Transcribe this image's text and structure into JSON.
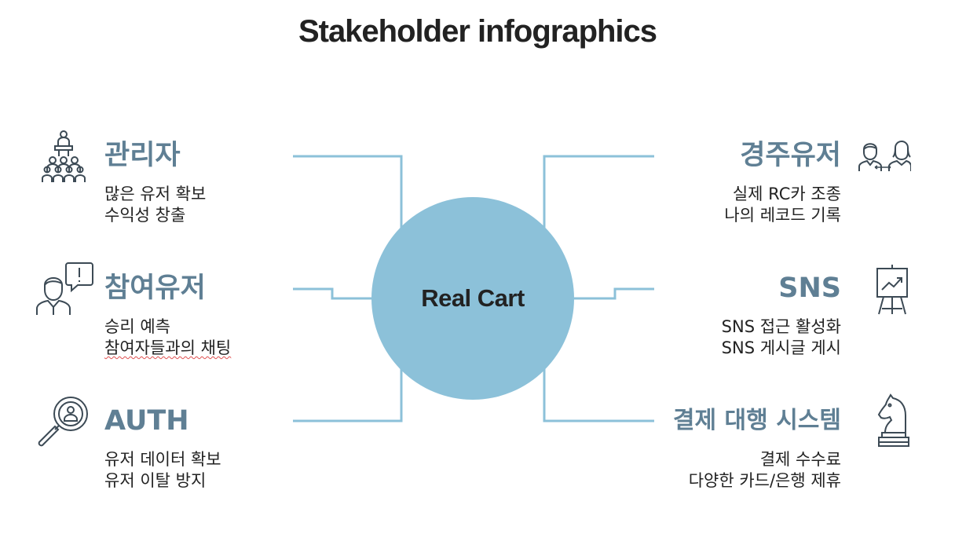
{
  "title": "Stakeholder infographics",
  "hub": {
    "label": "Real Cart"
  },
  "left": [
    {
      "title": "관리자",
      "lines": [
        "많은 유저 확보",
        "수익성 창출"
      ],
      "icon": "presenter-audience-icon"
    },
    {
      "title": "참여유저",
      "lines": [
        "승리 예측",
        "참여자들과의 채팅"
      ],
      "icon": "person-exclamation-icon"
    },
    {
      "title": "AUTH",
      "lines": [
        "유저 데이터 확보",
        "유저 이탈 방지"
      ],
      "icon": "magnifier-user-icon"
    }
  ],
  "right": [
    {
      "title": "경주유저",
      "lines": [
        "실제 RC카 조종",
        "나의 레코드 기록"
      ],
      "icon": "two-people-exchange-icon"
    },
    {
      "title": "SNS",
      "lines": [
        "SNS 접근 활성화",
        "SNS 게시글 게시"
      ],
      "icon": "flipchart-growth-icon"
    },
    {
      "title": "결제 대행 시스템",
      "lines": [
        "결제 수수료",
        "다양한 카드/은행 제휴"
      ],
      "icon": "chess-knight-icon"
    }
  ],
  "colors": {
    "accent_text": "#5f7f94",
    "hub_fill": "#8cc1d9",
    "connector": "#8cc1d9",
    "icon_stroke": "#3c4a55"
  }
}
